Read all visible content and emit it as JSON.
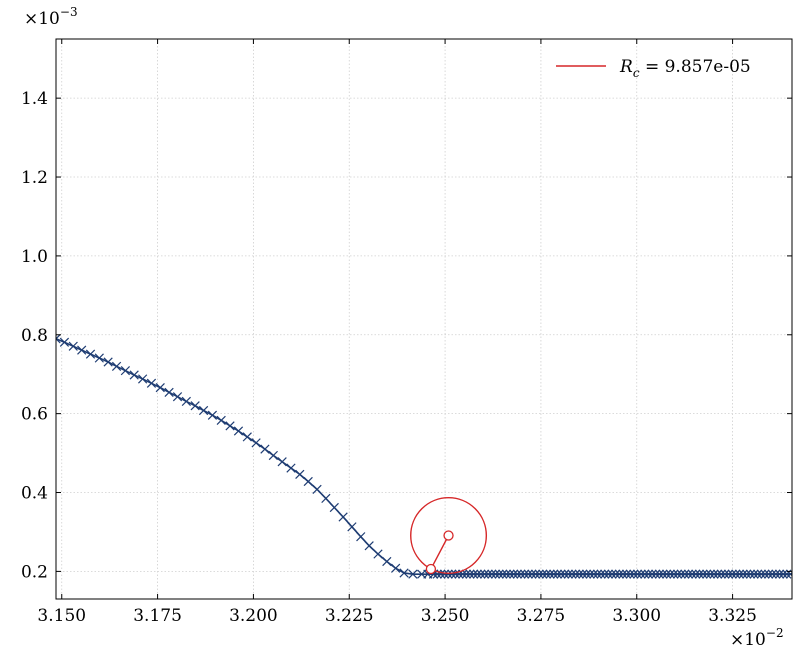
{
  "chart_data": {
    "type": "line",
    "title": "",
    "xlabel": "",
    "ylabel": "",
    "x_multiplier": {
      "base": "×10",
      "exp": "−2"
    },
    "y_multiplier": {
      "base": "×10",
      "exp": "−3"
    },
    "xlim": [
      3.1485,
      3.3405
    ],
    "ylim": [
      0.13,
      1.55
    ],
    "grid": true,
    "legend_placement": "top-right",
    "legend": {
      "label_var": "R",
      "label_sub": "c",
      "label_rest": " = 9.857e-05",
      "color": "#d62728"
    },
    "x_ticks": [
      {
        "value": 3.15,
        "label": "3.150"
      },
      {
        "value": 3.175,
        "label": "3.175"
      },
      {
        "value": 3.2,
        "label": "3.200"
      },
      {
        "value": 3.225,
        "label": "3.225"
      },
      {
        "value": 3.25,
        "label": "3.250"
      },
      {
        "value": 3.275,
        "label": "3.275"
      },
      {
        "value": 3.3,
        "label": "3.300"
      },
      {
        "value": 3.325,
        "label": "3.325"
      }
    ],
    "y_ticks": [
      {
        "value": 0.2,
        "label": "0.2"
      },
      {
        "value": 0.4,
        "label": "0.4"
      },
      {
        "value": 0.6,
        "label": "0.6"
      },
      {
        "value": 0.8,
        "label": "0.8"
      },
      {
        "value": 1.0,
        "label": "1.0"
      },
      {
        "value": 1.2,
        "label": "1.2"
      },
      {
        "value": 1.4,
        "label": "1.4"
      }
    ],
    "series": [
      {
        "color": "#1f3d73",
        "marker": "x",
        "x": [
          3.1485,
          3.1507,
          3.153,
          3.1552,
          3.1575,
          3.1598,
          3.1621,
          3.1643,
          3.1666,
          3.1689,
          3.1711,
          3.1734,
          3.1757,
          3.178,
          3.1802,
          3.1825,
          3.1848,
          3.187,
          3.1893,
          3.1916,
          3.1939,
          3.1961,
          3.1984,
          3.2007,
          3.203,
          3.2052,
          3.2075,
          3.2098,
          3.2121,
          3.2143,
          3.2166,
          3.2189,
          3.2211,
          3.2234,
          3.2257,
          3.228,
          3.2302,
          3.2325,
          3.2348,
          3.2371,
          3.2393,
          3.2416,
          3.2439,
          3.2455,
          3.247
        ],
        "y": [
          0.79,
          0.781,
          0.771,
          0.761,
          0.751,
          0.741,
          0.731,
          0.72,
          0.709,
          0.698,
          0.688,
          0.677,
          0.666,
          0.654,
          0.643,
          0.631,
          0.62,
          0.608,
          0.596,
          0.583,
          0.569,
          0.556,
          0.541,
          0.526,
          0.51,
          0.494,
          0.478,
          0.462,
          0.446,
          0.428,
          0.408,
          0.385,
          0.362,
          0.338,
          0.313,
          0.288,
          0.265,
          0.244,
          0.225,
          0.208,
          0.196,
          0.193,
          0.193,
          0.193,
          0.193
        ]
      }
    ],
    "flat_segment": {
      "x_start": 3.247,
      "x_end": 3.3405,
      "y": 0.193,
      "marker_step": 0.00095
    },
    "annotation": {
      "center": {
        "x": 3.2509,
        "y": 0.291
      },
      "radius": 9.86e-05,
      "anchor_point": {
        "x": 3.2463,
        "y": 0.206
      },
      "color": "#d62728"
    }
  }
}
